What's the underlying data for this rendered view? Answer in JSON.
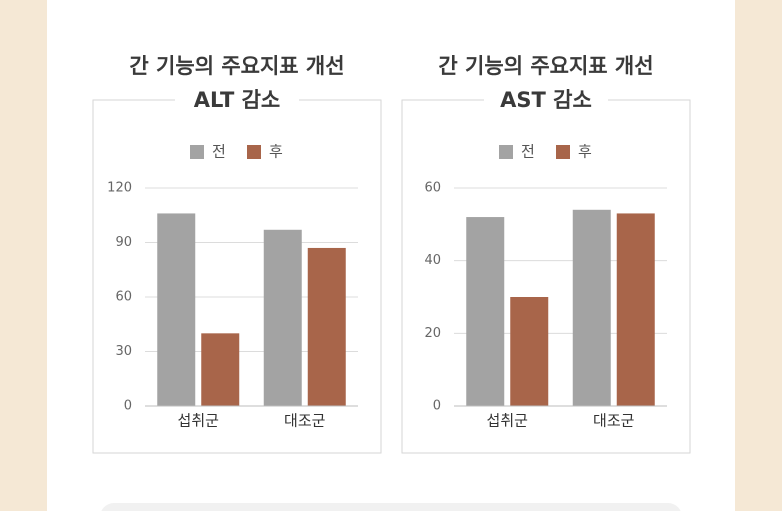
{
  "chart_data": [
    {
      "type": "bar",
      "title": "간 기능의 주요지표 개선",
      "subtitle": "ALT 감소",
      "categories": [
        "섭취군",
        "대조군"
      ],
      "series": [
        {
          "name": "전",
          "color": "#a3a3a3",
          "values": [
            106,
            97
          ]
        },
        {
          "name": "후",
          "color": "#a8654a",
          "values": [
            40,
            87
          ]
        }
      ],
      "ylim": [
        0,
        120
      ],
      "yticks": [
        0,
        30,
        60,
        90,
        120
      ],
      "grid": true,
      "legend": "top"
    },
    {
      "type": "bar",
      "title": "간 기능의 주요지표 개선",
      "subtitle": "AST 감소",
      "categories": [
        "섭취군",
        "대조군"
      ],
      "series": [
        {
          "name": "전",
          "color": "#a3a3a3",
          "values": [
            52,
            54
          ]
        },
        {
          "name": "후",
          "color": "#a8654a",
          "values": [
            30,
            53
          ]
        }
      ],
      "ylim": [
        0,
        60
      ],
      "yticks": [
        0,
        20,
        40,
        60
      ],
      "grid": true,
      "legend": "top"
    }
  ]
}
